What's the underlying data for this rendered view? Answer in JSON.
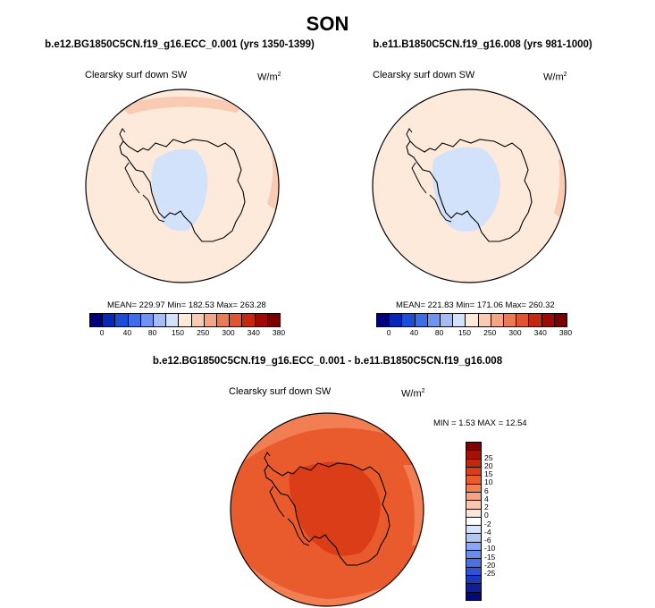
{
  "figure": {
    "season": "SON"
  },
  "panel_left": {
    "case": "b.e12.BG1850C5CN.f19_g16.ECC_0.001 (yrs 1350-1399)",
    "variable": "Clearsky surf down SW",
    "units": "W/m",
    "units_exp": "2",
    "stats": "MEAN= 229.97  Min= 182.53  Max= 263.28"
  },
  "panel_right": {
    "case": "b.e11.B1850C5CN.f19_g16.008 (yrs 981-1000)",
    "variable": "Clearsky surf down SW",
    "units": "W/m",
    "units_exp": "2",
    "stats": "MEAN= 221.83  Min= 171.06  Max= 260.32"
  },
  "panel_diff": {
    "case": "b.e12.BG1850C5CN.f19_g16.ECC_0.001 - b.e11.B1850C5CN.f19_g16.008",
    "variable": "Clearsky surf down SW",
    "units": "W/m",
    "units_exp": "2",
    "stats": "MIN =   1.53 MAX =  12.54"
  },
  "colorbar_abs": {
    "colors": [
      "#00007f",
      "#0826b8",
      "#1b4ed6",
      "#3d6ee8",
      "#6e93f0",
      "#a5bdf5",
      "#d3e2fb",
      "#fdeadb",
      "#f8cbb2",
      "#f3a584",
      "#ec7a57",
      "#e0542f",
      "#c3290f",
      "#a00a05",
      "#7a0000"
    ],
    "ticks": [
      "0",
      "40",
      "80",
      "150",
      "250",
      "300",
      "340",
      "380"
    ]
  },
  "colorbar_diff": {
    "colors": [
      "#7f0000",
      "#a5100a",
      "#c4260f",
      "#da3d17",
      "#e95a2c",
      "#f27e53",
      "#f6a584",
      "#fac8b1",
      "#fde7dc",
      "#ffffff",
      "#d6e4fb",
      "#aec7f5",
      "#89aaf0",
      "#6a8de9",
      "#4d6fe3",
      "#3052d6",
      "#1a38c0",
      "#0c209e",
      "#020a7a"
    ],
    "ticks": [
      "25",
      "20",
      "15",
      "10",
      "6",
      "4",
      "2",
      "0",
      "-2",
      "-4",
      "-6",
      "-10",
      "-15",
      "-20",
      "-25"
    ]
  },
  "map_colors": {
    "ocean_left": "#fdeadb",
    "ocean_right": "#fdeadb",
    "ocean_high": "#f8cbb2",
    "interior_low": "#d3e2fb",
    "diff_base": "#e95a2c",
    "diff_edge": "#f27e53",
    "diff_high": "#da3d17",
    "land_line": "#000000"
  }
}
